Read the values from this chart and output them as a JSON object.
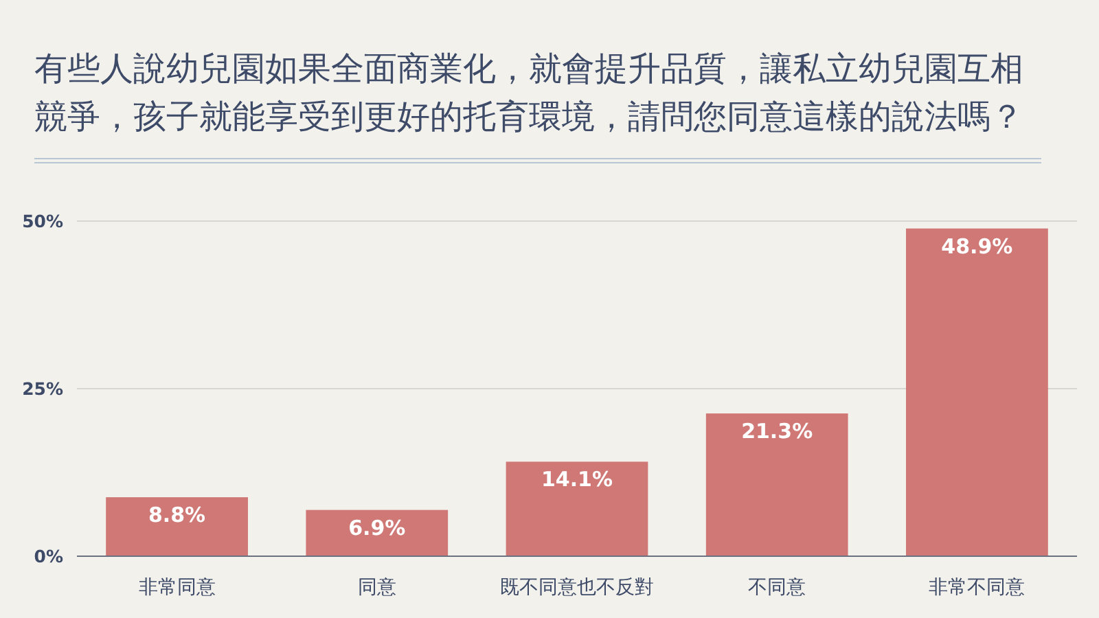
{
  "chart_data": {
    "type": "bar",
    "title": "有些人說幼兒園如果全面商業化，就會提升品質，讓私立幼兒園互相競爭，孩子就能享受到更好的托育環境，請問您同意這樣的說法嗎？",
    "categories": [
      "非常同意",
      "同意",
      "既不同意也不反對",
      "不同意",
      "非常不同意"
    ],
    "values": [
      8.8,
      6.9,
      14.1,
      21.3,
      48.9
    ],
    "value_labels": [
      "8.8%",
      "6.9%",
      "14.1%",
      "21.3%",
      "48.9%"
    ],
    "color": "#cf7876",
    "ylim": [
      0,
      50
    ],
    "yticks": [
      {
        "value": 0,
        "label": "0%"
      },
      {
        "value": 25,
        "label": "25%"
      },
      {
        "value": 50,
        "label": "50%"
      }
    ],
    "grid": "y"
  }
}
